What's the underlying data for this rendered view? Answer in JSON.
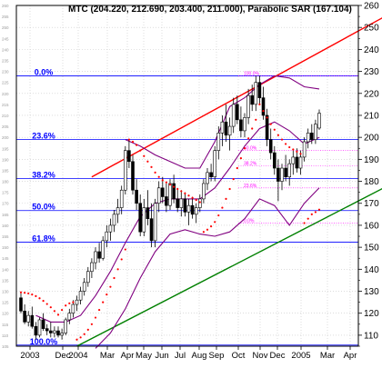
{
  "chart_data": {
    "type": "candlestick",
    "title": "MTC (204.220, 212.690, 203.400, 211.000), Parabolic SAR (167.104)",
    "y_axis": {
      "min": 105,
      "max": 260,
      "position": "right",
      "labeled_ticks": [
        110,
        120,
        130,
        140,
        150,
        160,
        170,
        180,
        190,
        200,
        210,
        220,
        230,
        240,
        250,
        260
      ],
      "minor_ticks": [
        105,
        115,
        125,
        135,
        145,
        155,
        165,
        175,
        185,
        195,
        205,
        215,
        225,
        235,
        245,
        255
      ]
    },
    "x_axis": {
      "labels": [
        "2003",
        "Dec",
        "2004",
        "Mar",
        "Apr",
        "May",
        "Jun",
        "Jul",
        "Aug",
        "Sep",
        "Oct",
        "Nov",
        "Dec",
        "2005",
        "Mar",
        "Apr"
      ]
    },
    "grid": "dotted",
    "fibonacci": {
      "low": 105.5,
      "high": 228,
      "levels": [
        {
          "label": "0.0%",
          "value": 228
        },
        {
          "label": "23.6%",
          "value": 199.1
        },
        {
          "label": "38.2%",
          "value": 181.2
        },
        {
          "label": "50.0%",
          "value": 166.7
        },
        {
          "label": "61.8%",
          "value": 152.3
        },
        {
          "label": "100.0%",
          "value": 105.5
        }
      ]
    },
    "secondary_fibonacci": {
      "levels": [
        {
          "label": "100.0%",
          "value": 228
        },
        {
          "label": "50.0%",
          "value": 194
        },
        {
          "label": "38.2%",
          "value": 187
        },
        {
          "label": "23.6%",
          "value": 177
        },
        {
          "label": "0.0%",
          "value": 161
        }
      ]
    },
    "candles": [
      {
        "t": 0,
        "o": 127,
        "h": 129,
        "l": 120,
        "c": 121
      },
      {
        "t": 1,
        "o": 121,
        "h": 124,
        "l": 115,
        "c": 116
      },
      {
        "t": 2,
        "o": 116,
        "h": 121,
        "l": 114,
        "c": 119
      },
      {
        "t": 3,
        "o": 119,
        "h": 123,
        "l": 113,
        "c": 114
      },
      {
        "t": 4,
        "o": 114,
        "h": 116,
        "l": 108,
        "c": 110
      },
      {
        "t": 5,
        "o": 110,
        "h": 118,
        "l": 109,
        "c": 117
      },
      {
        "t": 6,
        "o": 117,
        "h": 120,
        "l": 112,
        "c": 113
      },
      {
        "t": 7,
        "o": 113,
        "h": 115,
        "l": 110,
        "c": 112
      },
      {
        "t": 8,
        "o": 112,
        "h": 116,
        "l": 109,
        "c": 111
      },
      {
        "t": 9,
        "o": 111,
        "h": 114,
        "l": 109,
        "c": 112
      },
      {
        "t": 10,
        "o": 112,
        "h": 114,
        "l": 109,
        "c": 110
      },
      {
        "t": 11,
        "o": 110,
        "h": 113,
        "l": 108,
        "c": 111
      },
      {
        "t": 12,
        "o": 111,
        "h": 118,
        "l": 110,
        "c": 117
      },
      {
        "t": 13,
        "o": 117,
        "h": 122,
        "l": 115,
        "c": 120
      },
      {
        "t": 14,
        "o": 120,
        "h": 126,
        "l": 118,
        "c": 124
      },
      {
        "t": 15,
        "o": 124,
        "h": 128,
        "l": 121,
        "c": 126
      },
      {
        "t": 16,
        "o": 126,
        "h": 132,
        "l": 124,
        "c": 130
      },
      {
        "t": 17,
        "o": 130,
        "h": 136,
        "l": 128,
        "c": 134
      },
      {
        "t": 18,
        "o": 134,
        "h": 141,
        "l": 132,
        "c": 139
      },
      {
        "t": 19,
        "o": 139,
        "h": 145,
        "l": 136,
        "c": 143
      },
      {
        "t": 20,
        "o": 143,
        "h": 150,
        "l": 140,
        "c": 148
      },
      {
        "t": 21,
        "o": 148,
        "h": 152,
        "l": 143,
        "c": 145
      },
      {
        "t": 22,
        "o": 145,
        "h": 155,
        "l": 144,
        "c": 153
      },
      {
        "t": 23,
        "o": 153,
        "h": 160,
        "l": 150,
        "c": 157
      },
      {
        "t": 24,
        "o": 157,
        "h": 163,
        "l": 153,
        "c": 160
      },
      {
        "t": 25,
        "o": 160,
        "h": 167,
        "l": 157,
        "c": 165
      },
      {
        "t": 26,
        "o": 165,
        "h": 172,
        "l": 161,
        "c": 168
      },
      {
        "t": 27,
        "o": 168,
        "h": 178,
        "l": 165,
        "c": 176
      },
      {
        "t": 28,
        "o": 176,
        "h": 196,
        "l": 174,
        "c": 194
      },
      {
        "t": 29,
        "o": 194,
        "h": 199,
        "l": 186,
        "c": 189
      },
      {
        "t": 30,
        "o": 189,
        "h": 192,
        "l": 174,
        "c": 176
      },
      {
        "t": 31,
        "o": 176,
        "h": 181,
        "l": 167,
        "c": 170
      },
      {
        "t": 32,
        "o": 170,
        "h": 174,
        "l": 155,
        "c": 157
      },
      {
        "t": 33,
        "o": 157,
        "h": 172,
        "l": 155,
        "c": 168
      },
      {
        "t": 34,
        "o": 168,
        "h": 176,
        "l": 160,
        "c": 163
      },
      {
        "t": 35,
        "o": 163,
        "h": 170,
        "l": 150,
        "c": 153
      },
      {
        "t": 36,
        "o": 153,
        "h": 172,
        "l": 150,
        "c": 170
      },
      {
        "t": 37,
        "o": 170,
        "h": 180,
        "l": 166,
        "c": 177
      },
      {
        "t": 38,
        "o": 177,
        "h": 182,
        "l": 170,
        "c": 173
      },
      {
        "t": 39,
        "o": 173,
        "h": 179,
        "l": 166,
        "c": 169
      },
      {
        "t": 40,
        "o": 169,
        "h": 181,
        "l": 167,
        "c": 179
      },
      {
        "t": 41,
        "o": 179,
        "h": 183,
        "l": 170,
        "c": 172
      },
      {
        "t": 42,
        "o": 172,
        "h": 177,
        "l": 166,
        "c": 168
      },
      {
        "t": 43,
        "o": 168,
        "h": 176,
        "l": 164,
        "c": 172
      },
      {
        "t": 44,
        "o": 172,
        "h": 175,
        "l": 164,
        "c": 166
      },
      {
        "t": 45,
        "o": 166,
        "h": 172,
        "l": 160,
        "c": 169
      },
      {
        "t": 46,
        "o": 169,
        "h": 173,
        "l": 163,
        "c": 165
      },
      {
        "t": 47,
        "o": 165,
        "h": 170,
        "l": 161,
        "c": 168
      },
      {
        "t": 48,
        "o": 168,
        "h": 174,
        "l": 166,
        "c": 172
      },
      {
        "t": 49,
        "o": 172,
        "h": 181,
        "l": 170,
        "c": 179
      },
      {
        "t": 50,
        "o": 179,
        "h": 186,
        "l": 176,
        "c": 184
      },
      {
        "t": 51,
        "o": 184,
        "h": 188,
        "l": 180,
        "c": 182
      },
      {
        "t": 52,
        "o": 182,
        "h": 196,
        "l": 180,
        "c": 194
      },
      {
        "t": 53,
        "o": 194,
        "h": 205,
        "l": 190,
        "c": 202
      },
      {
        "t": 54,
        "o": 202,
        "h": 210,
        "l": 196,
        "c": 207
      },
      {
        "t": 55,
        "o": 207,
        "h": 215,
        "l": 198,
        "c": 201
      },
      {
        "t": 56,
        "o": 201,
        "h": 209,
        "l": 194,
        "c": 205
      },
      {
        "t": 57,
        "o": 205,
        "h": 218,
        "l": 202,
        "c": 215
      },
      {
        "t": 58,
        "o": 215,
        "h": 219,
        "l": 206,
        "c": 208
      },
      {
        "t": 59,
        "o": 208,
        "h": 214,
        "l": 200,
        "c": 203
      },
      {
        "t": 60,
        "o": 203,
        "h": 211,
        "l": 200,
        "c": 209
      },
      {
        "t": 61,
        "o": 209,
        "h": 222,
        "l": 206,
        "c": 219
      },
      {
        "t": 62,
        "o": 219,
        "h": 224,
        "l": 212,
        "c": 215
      },
      {
        "t": 63,
        "o": 215,
        "h": 228,
        "l": 212,
        "c": 225
      },
      {
        "t": 64,
        "o": 225,
        "h": 228,
        "l": 215,
        "c": 218
      },
      {
        "t": 65,
        "o": 218,
        "h": 223,
        "l": 208,
        "c": 210
      },
      {
        "t": 66,
        "o": 210,
        "h": 213,
        "l": 196,
        "c": 199
      },
      {
        "t": 67,
        "o": 199,
        "h": 204,
        "l": 190,
        "c": 193
      },
      {
        "t": 68,
        "o": 193,
        "h": 196,
        "l": 183,
        "c": 186
      },
      {
        "t": 69,
        "o": 186,
        "h": 190,
        "l": 171,
        "c": 180
      },
      {
        "t": 70,
        "o": 180,
        "h": 188,
        "l": 176,
        "c": 186
      },
      {
        "t": 71,
        "o": 186,
        "h": 192,
        "l": 180,
        "c": 182
      },
      {
        "t": 72,
        "o": 182,
        "h": 190,
        "l": 178,
        "c": 188
      },
      {
        "t": 73,
        "o": 188,
        "h": 194,
        "l": 183,
        "c": 191
      },
      {
        "t": 74,
        "o": 191,
        "h": 195,
        "l": 184,
        "c": 186
      },
      {
        "t": 75,
        "o": 186,
        "h": 194,
        "l": 183,
        "c": 191
      },
      {
        "t": 76,
        "o": 191,
        "h": 200,
        "l": 189,
        "c": 198
      },
      {
        "t": 77,
        "o": 198,
        "h": 204,
        "l": 195,
        "c": 202
      },
      {
        "t": 78,
        "o": 202,
        "h": 206,
        "l": 197,
        "c": 199
      },
      {
        "t": 79,
        "o": 199,
        "h": 208,
        "l": 197,
        "c": 206
      },
      {
        "t": 80,
        "o": 204.22,
        "h": 212.69,
        "l": 203.4,
        "c": 211
      }
    ],
    "parabolic_sar": [
      {
        "t": 0,
        "v": 129.5
      },
      {
        "t": 1,
        "v": 129.3
      },
      {
        "t": 2,
        "v": 129
      },
      {
        "t": 3,
        "v": 128.5
      },
      {
        "t": 4,
        "v": 127.8
      },
      {
        "t": 5,
        "v": 126.8
      },
      {
        "t": 6,
        "v": 125.6
      },
      {
        "t": 7,
        "v": 124.2
      },
      {
        "t": 8,
        "v": 122.7
      },
      {
        "t": 9,
        "v": 121
      },
      {
        "t": 10,
        "v": 119.3
      },
      {
        "t": 11,
        "v": 121.5
      },
      {
        "t": 12,
        "v": 123.5
      },
      {
        "t": 13,
        "v": 124.5
      },
      {
        "t": 14,
        "v": 125
      },
      {
        "t": 15,
        "v": 108
      },
      {
        "t": 16,
        "v": 109
      },
      {
        "t": 17,
        "v": 110.5
      },
      {
        "t": 18,
        "v": 112.5
      },
      {
        "t": 19,
        "v": 115
      },
      {
        "t": 20,
        "v": 118
      },
      {
        "t": 21,
        "v": 121.5
      },
      {
        "t": 22,
        "v": 125
      },
      {
        "t": 23,
        "v": 128.5
      },
      {
        "t": 24,
        "v": 132
      },
      {
        "t": 25,
        "v": 136
      },
      {
        "t": 26,
        "v": 140
      },
      {
        "t": 27,
        "v": 144.5
      },
      {
        "t": 28,
        "v": 149
      },
      {
        "t": 29,
        "v": 199
      },
      {
        "t": 30,
        "v": 198
      },
      {
        "t": 31,
        "v": 196.5
      },
      {
        "t": 32,
        "v": 194
      },
      {
        "t": 33,
        "v": 191.5
      },
      {
        "t": 34,
        "v": 189
      },
      {
        "t": 35,
        "v": 186.5
      },
      {
        "t": 36,
        "v": 184
      },
      {
        "t": 37,
        "v": 182
      },
      {
        "t": 38,
        "v": 180.5
      },
      {
        "t": 39,
        "v": 179.5
      },
      {
        "t": 40,
        "v": 178.5
      },
      {
        "t": 41,
        "v": 177.5
      },
      {
        "t": 42,
        "v": 176.5
      },
      {
        "t": 43,
        "v": 175.5
      },
      {
        "t": 44,
        "v": 174.5
      },
      {
        "t": 45,
        "v": 173.5
      },
      {
        "t": 46,
        "v": 172.5
      },
      {
        "t": 47,
        "v": 171.5
      },
      {
        "t": 48,
        "v": 170.5
      },
      {
        "t": 49,
        "v": 157
      },
      {
        "t": 50,
        "v": 158
      },
      {
        "t": 51,
        "v": 159.5
      },
      {
        "t": 52,
        "v": 161.5
      },
      {
        "t": 53,
        "v": 164.5
      },
      {
        "t": 54,
        "v": 168
      },
      {
        "t": 55,
        "v": 172
      },
      {
        "t": 56,
        "v": 176.5
      },
      {
        "t": 57,
        "v": 181
      },
      {
        "t": 58,
        "v": 186
      },
      {
        "t": 59,
        "v": 190.5
      },
      {
        "t": 60,
        "v": 195
      },
      {
        "t": 61,
        "v": 199.5
      },
      {
        "t": 62,
        "v": 204
      },
      {
        "t": 63,
        "v": 208
      },
      {
        "t": 64,
        "v": 215
      },
      {
        "t": 65,
        "v": 212
      },
      {
        "t": 66,
        "v": 209
      },
      {
        "t": 67,
        "v": 206
      },
      {
        "t": 68,
        "v": 203.5
      },
      {
        "t": 69,
        "v": 201
      },
      {
        "t": 70,
        "v": 199
      },
      {
        "t": 71,
        "v": 197
      },
      {
        "t": 72,
        "v": 195.5
      },
      {
        "t": 73,
        "v": 194.5
      },
      {
        "t": 74,
        "v": 193.5
      },
      {
        "t": 75,
        "v": 192.5
      },
      {
        "t": 76,
        "v": 161
      },
      {
        "t": 77,
        "v": 163
      },
      {
        "t": 78,
        "v": 165
      },
      {
        "t": 79,
        "v": 166
      },
      {
        "t": 80,
        "v": 167.104
      }
    ],
    "bollinger_upper": [
      {
        "t": 28,
        "v": 199
      },
      {
        "t": 32,
        "v": 196
      },
      {
        "t": 36,
        "v": 192
      },
      {
        "t": 40,
        "v": 189
      },
      {
        "t": 44,
        "v": 186
      },
      {
        "t": 48,
        "v": 186
      },
      {
        "t": 52,
        "v": 198
      },
      {
        "t": 56,
        "v": 214
      },
      {
        "t": 60,
        "v": 218
      },
      {
        "t": 64,
        "v": 224
      },
      {
        "t": 68,
        "v": 228
      },
      {
        "t": 72,
        "v": 227
      },
      {
        "t": 76,
        "v": 223
      },
      {
        "t": 80,
        "v": 222
      }
    ],
    "bollinger_middle": [
      {
        "t": 4,
        "v": 119
      },
      {
        "t": 8,
        "v": 116
      },
      {
        "t": 12,
        "v": 116
      },
      {
        "t": 16,
        "v": 119
      },
      {
        "t": 20,
        "v": 128
      },
      {
        "t": 24,
        "v": 139
      },
      {
        "t": 28,
        "v": 152
      },
      {
        "t": 32,
        "v": 164
      },
      {
        "t": 36,
        "v": 170
      },
      {
        "t": 40,
        "v": 172
      },
      {
        "t": 44,
        "v": 172
      },
      {
        "t": 48,
        "v": 172
      },
      {
        "t": 52,
        "v": 177
      },
      {
        "t": 56,
        "v": 186
      },
      {
        "t": 60,
        "v": 196
      },
      {
        "t": 64,
        "v": 204
      },
      {
        "t": 68,
        "v": 207
      },
      {
        "t": 72,
        "v": 203
      },
      {
        "t": 76,
        "v": 197
      },
      {
        "t": 80,
        "v": 200
      }
    ],
    "bollinger_lower": [
      {
        "t": 20,
        "v": 104
      },
      {
        "t": 24,
        "v": 111
      },
      {
        "t": 28,
        "v": 122
      },
      {
        "t": 32,
        "v": 136
      },
      {
        "t": 36,
        "v": 148
      },
      {
        "t": 40,
        "v": 156
      },
      {
        "t": 44,
        "v": 158
      },
      {
        "t": 48,
        "v": 156
      },
      {
        "t": 52,
        "v": 155
      },
      {
        "t": 56,
        "v": 157
      },
      {
        "t": 60,
        "v": 163
      },
      {
        "t": 64,
        "v": 172
      },
      {
        "t": 68,
        "v": 169
      },
      {
        "t": 72,
        "v": 160
      },
      {
        "t": 76,
        "v": 170
      },
      {
        "t": 80,
        "v": 177
      }
    ],
    "trendlines": [
      {
        "name": "upper-channel",
        "color": "#ff0000",
        "from": {
          "t": 19,
          "v": 182
        },
        "to": {
          "t": 103,
          "v": 260
        }
      },
      {
        "name": "lower-channel",
        "color": "#008000",
        "from": {
          "t": 15,
          "v": 105
        },
        "to": {
          "t": 103,
          "v": 182
        }
      }
    ],
    "colors": {
      "sar": "#ff0000",
      "bollinger": "#800080",
      "fib_lines": "#0000ff",
      "fib_labels": "#0000ff",
      "secondary_fib": "#ff00ff",
      "candle": "#000000"
    }
  }
}
